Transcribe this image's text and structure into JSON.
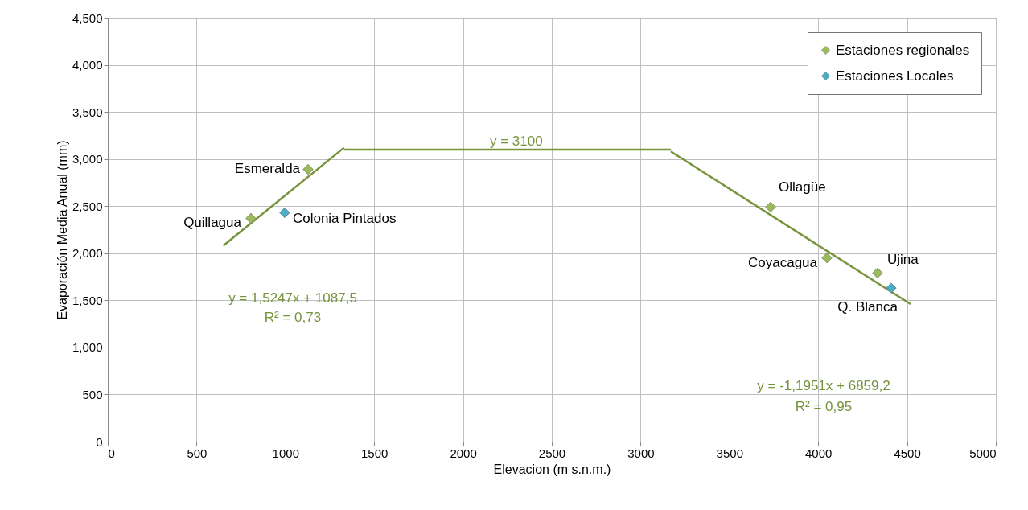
{
  "chart_data": {
    "type": "scatter",
    "xlabel": "Elevacion (m s.n.m.)",
    "ylabel": "Evaporación Media Anual (mm)",
    "xlim": [
      0,
      5000
    ],
    "xticks": [
      0,
      500,
      1000,
      1500,
      2000,
      2500,
      3000,
      3500,
      4000,
      4500,
      5000
    ],
    "ylim": [
      0,
      4500
    ],
    "yticks": [
      0,
      {
        "value": 500,
        "label": "500"
      },
      {
        "value": 1000,
        "label": "1,000"
      },
      {
        "value": 1500,
        "label": "1,500"
      },
      {
        "value": 2000,
        "label": "2,000"
      },
      {
        "value": 2500,
        "label": "2,500"
      },
      {
        "value": 3000,
        "label": "3,000"
      },
      {
        "value": 3500,
        "label": "3,500"
      },
      {
        "value": 4000,
        "label": "4,000"
      },
      {
        "value": 4500,
        "label": "4,500"
      }
    ],
    "grid": true,
    "legend": "top right",
    "marker": "diamond",
    "series": [
      {
        "name": "Estaciones regionales",
        "color": "#9bbb59",
        "x": [
          806,
          1128,
          3732,
          4049,
          4334
        ],
        "values": [
          2370,
          2890,
          2490,
          1950,
          1790
        ]
      },
      {
        "name": "Estaciones Locales",
        "color": "#4bacc6",
        "x": [
          996,
          4411
        ],
        "values": [
          2430,
          1630
        ]
      },
      {
        "type": "line",
        "marker": "none",
        "color": "#77933c",
        "x": [
          650,
          1330
        ],
        "values": [
          2080,
          3120
        ]
      },
      {
        "type": "line",
        "marker": "none",
        "color": "#77933c",
        "x": [
          1330,
          3170
        ],
        "values": [
          3100,
          3100
        ]
      },
      {
        "type": "line",
        "marker": "none",
        "color": "#77933c",
        "x": [
          3170,
          4520
        ],
        "values": [
          3080,
          1460
        ]
      }
    ],
    "annotations": [
      {
        "text": "Quillagua",
        "x": 806,
        "y": 2374
      },
      {
        "text": "Esmeralda",
        "x": 1128,
        "y": 2895
      },
      {
        "text": "Colonia Pintados",
        "x": 996,
        "y": 2434
      },
      {
        "text": "Ollagüe",
        "x": 3732,
        "y": 2494
      },
      {
        "text": "Coyacagua",
        "x": 4049,
        "y": 1947
      },
      {
        "text": "Ujina",
        "x": 4334,
        "y": 1793
      },
      {
        "text": "Q. Blanca",
        "x": 4411,
        "y": 1631
      },
      {
        "text": "y = 3100",
        "x": 2300,
        "y": 3100
      },
      "y = 1,5247x + 1087,5",
      "R² = 0,73",
      "y = -1,1951x + 6859,2",
      "R² = 0,95"
    ]
  }
}
